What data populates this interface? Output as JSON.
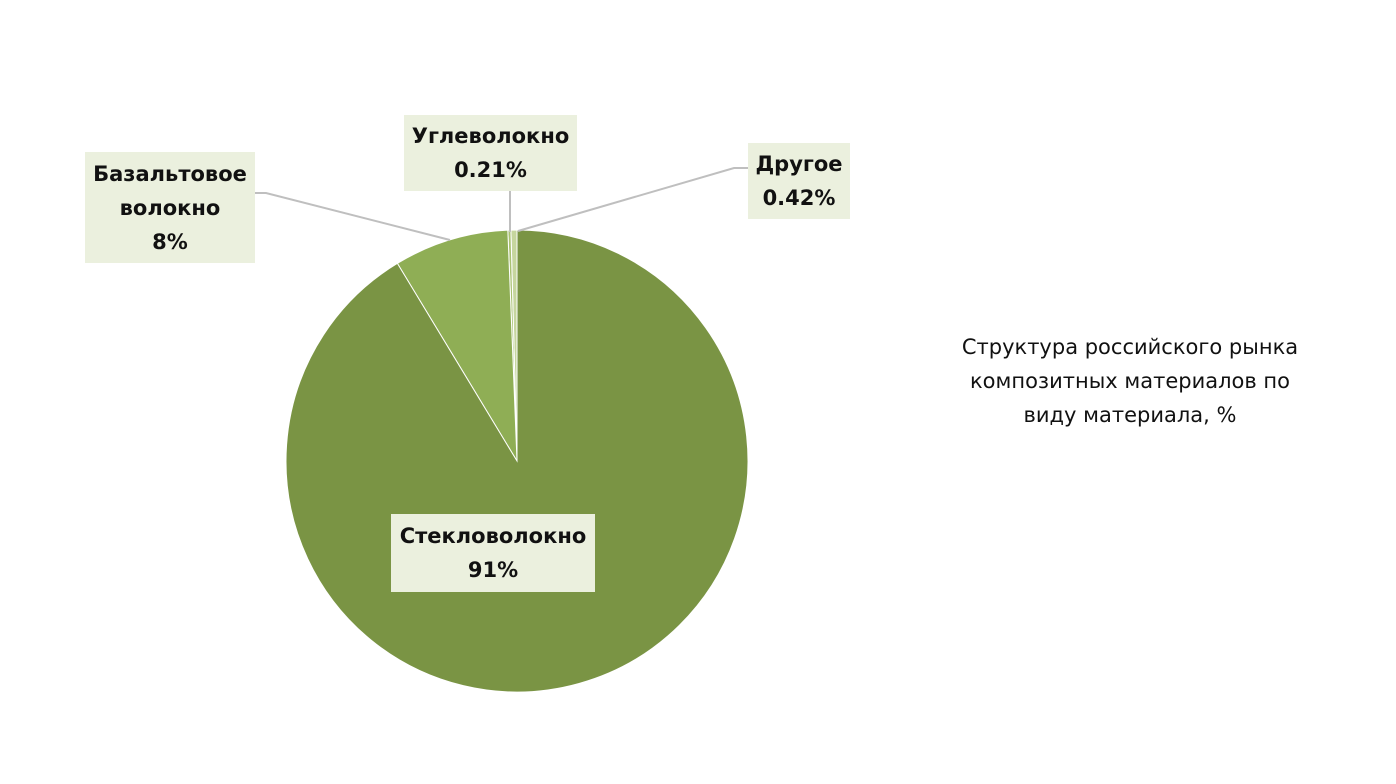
{
  "chart_data": {
    "type": "pie",
    "title": "Структура российского рынка композитных материалов по виду материала, %",
    "categories": [
      "Стекловолокно",
      "Базальтовое волокно",
      "Углеволокно",
      "Другое"
    ],
    "values": [
      91,
      8,
      0.21,
      0.42
    ],
    "value_labels": [
      "91%",
      "8%",
      "0.21%",
      "0.42%"
    ],
    "colors": [
      "#7a9444",
      "#8fae55",
      "#a9c172",
      "#c6d69e"
    ]
  }
}
